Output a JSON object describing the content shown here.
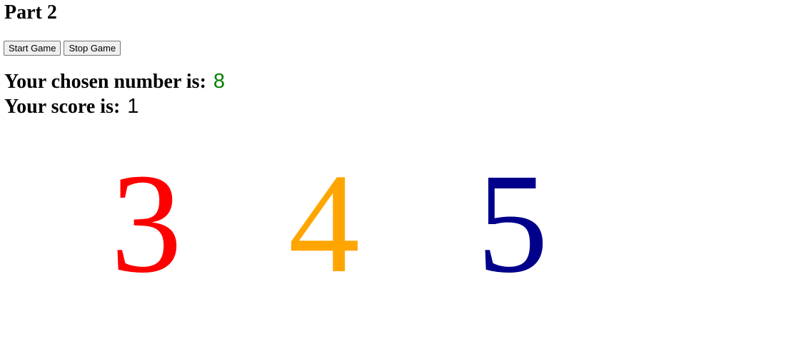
{
  "page": {
    "title": "Part 2"
  },
  "controls": {
    "start_label": "Start Game",
    "stop_label": "Stop Game"
  },
  "status": {
    "chosen_label": "Your chosen number is:",
    "chosen_value": "8",
    "chosen_color": "#008000",
    "score_label": "Your score is:",
    "score_value": "1",
    "score_color": "#000000"
  },
  "numbers": [
    {
      "value": "3",
      "color": "#ff0000"
    },
    {
      "value": "4",
      "color": "#ffa500"
    },
    {
      "value": "5",
      "color": "#00008b"
    }
  ]
}
